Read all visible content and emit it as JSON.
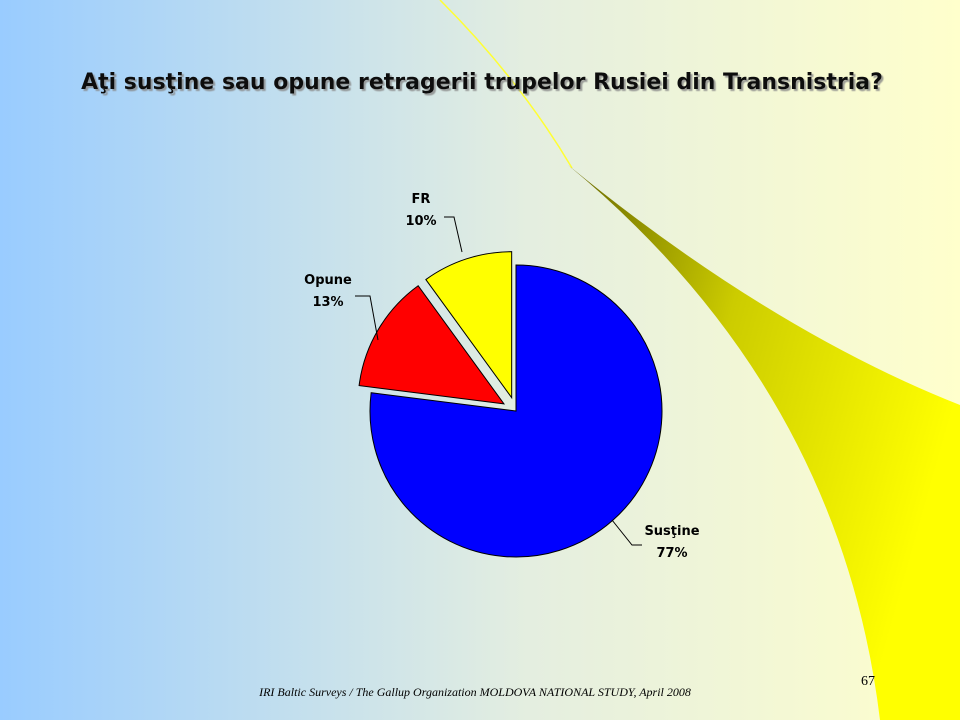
{
  "chart_data": {
    "type": "pie",
    "title": "Aţi susţine sau opune retragerii trupelor Rusiei din Transnistria?",
    "categories": [
      "Susţine",
      "Opune",
      "FR"
    ],
    "values": [
      77,
      13,
      10
    ],
    "value_labels": [
      "77%",
      "13%",
      "10%"
    ],
    "colors": [
      "#0000ff",
      "#ff0000",
      "#ffff00"
    ],
    "explode": [
      false,
      true,
      true
    ]
  },
  "footer": "IRI  Baltic Surveys / The Gallup Organization  MOLDOVA  NATIONAL  STUDY,  April 2008",
  "page_number": "67"
}
